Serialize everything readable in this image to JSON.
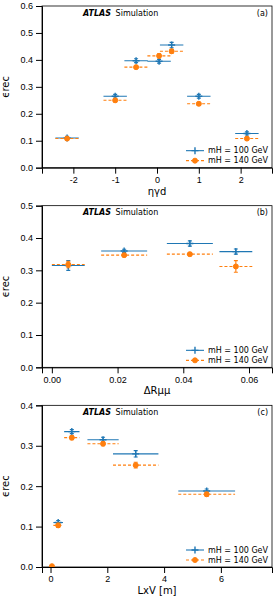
{
  "chart_data": [
    {
      "type": "scatter",
      "title": "(a)",
      "x_label": "ηγd",
      "y_label": "ϵrec",
      "annotations": [
        {
          "text": "ATLAS"
        },
        {
          "text": "Simulation"
        }
      ],
      "xlim": [
        -2.75,
        2.75
      ],
      "xticks": [
        -2,
        -1,
        0,
        1,
        2
      ],
      "ylim": [
        0,
        0.6
      ],
      "yticks": [
        {
          "value": 0.0,
          "label": "0.0"
        },
        0.1,
        0.2,
        0.3,
        0.4,
        0.5,
        0.6
      ],
      "grid": false,
      "legend": "lower right",
      "series": [
        {
          "name": "mH = 100 GeV",
          "marker": "plus",
          "line_style": "solid",
          "x": [
            -2.15,
            -1.0,
            -0.5,
            0.05,
            1.0,
            2.15,
            0.35
          ],
          "values": [
            0.11,
            0.265,
            0.397,
            0.395,
            0.265,
            0.127,
            0.455
          ],
          "xerr": [
            0.28,
            0.28,
            0.28,
            0.28,
            0.28,
            0.28,
            0.28
          ],
          "yerr": [
            0.006,
            0.007,
            0.007,
            0.007,
            0.007,
            0.006,
            0.01
          ]
        },
        {
          "name": "mH = 140 GeV",
          "marker": "circle",
          "line_style": "dashed",
          "x": [
            -2.15,
            -1.0,
            -0.5,
            0.05,
            1.0,
            2.15,
            0.35
          ],
          "values": [
            0.108,
            0.25,
            0.373,
            0.415,
            0.237,
            0.108,
            0.432
          ],
          "xerr": [
            0.28,
            0.28,
            0.28,
            0.28,
            0.28,
            0.28,
            0.28
          ],
          "yerr": [
            0.005,
            0.006,
            0.005,
            0.008,
            0.006,
            0.005,
            0.007
          ]
        }
      ]
    },
    {
      "type": "scatter",
      "title": "(b)",
      "x_label": "ΔRμμ",
      "y_label": "ϵrec",
      "annotations": [
        {
          "text": "ATLAS"
        },
        {
          "text": "Simulation"
        }
      ],
      "xlim": [
        -0.003,
        0.067
      ],
      "xticks": [
        {
          "value": 0,
          "label": "0.00"
        },
        0.02,
        0.04,
        0.06
      ],
      "ylim": [
        0,
        0.5
      ],
      "yticks": [
        {
          "value": 0.0,
          "label": "0.0"
        },
        0.1,
        0.2,
        0.3,
        0.4,
        0.5
      ],
      "grid": false,
      "legend": "lower right",
      "series": [
        {
          "name": "mH = 100 GeV",
          "marker": "plus",
          "line_style": "solid",
          "x": [
            0.005,
            0.022,
            0.042,
            0.056
          ],
          "values": [
            0.315,
            0.36,
            0.383,
            0.358
          ],
          "xerr": [
            0.005,
            0.007,
            0.007,
            0.005
          ],
          "yerr": [
            0.015,
            0.005,
            0.008,
            0.008
          ]
        },
        {
          "name": "mH = 140 GeV",
          "marker": "circle",
          "line_style": "dashed",
          "x": [
            0.005,
            0.022,
            0.042,
            0.056
          ],
          "values": [
            0.318,
            0.347,
            0.35,
            0.312
          ],
          "xerr": [
            0.005,
            0.007,
            0.007,
            0.005
          ],
          "yerr": [
            0.01,
            0.005,
            0.005,
            0.018
          ]
        }
      ]
    },
    {
      "type": "scatter",
      "title": "(c)",
      "x_label": "LxV [m]",
      "y_label": "ϵrec",
      "annotations": [
        {
          "text": "ATLAS"
        },
        {
          "text": "Simulation"
        }
      ],
      "xlim": [
        -0.3,
        7.8
      ],
      "xticks": [
        0,
        2,
        4,
        6
      ],
      "ylim": [
        0,
        0.4
      ],
      "yticks": [
        {
          "value": 0.0,
          "label": "0.0"
        },
        0.1,
        0.2,
        0.3,
        0.4
      ],
      "grid": false,
      "legend": "lower right",
      "series": [
        {
          "name": "mH = 100 GeV",
          "marker": "plus",
          "line_style": "solid",
          "x": [
            0.27,
            0.75,
            1.85,
            3.0,
            5.5
          ],
          "values": [
            0.11,
            0.335,
            0.315,
            0.28,
            0.188
          ],
          "xerr": [
            0.17,
            0.27,
            0.55,
            0.8,
            1.0
          ],
          "yerr": [
            0.005,
            0.005,
            0.006,
            0.008,
            0.005
          ]
        },
        {
          "name": "mH = 140 GeV",
          "marker": "circle",
          "line_style": "dashed",
          "x": [
            0.05,
            0.27,
            0.75,
            1.85,
            3.0,
            5.5
          ],
          "values": [
            0.002,
            0.103,
            0.32,
            0.305,
            0.252,
            0.18
          ],
          "xerr": [
            0.05,
            0.17,
            0.27,
            0.55,
            0.8,
            1.0
          ],
          "yerr": [
            0.001,
            0.005,
            0.005,
            0.005,
            0.007,
            0.005
          ]
        }
      ]
    }
  ]
}
